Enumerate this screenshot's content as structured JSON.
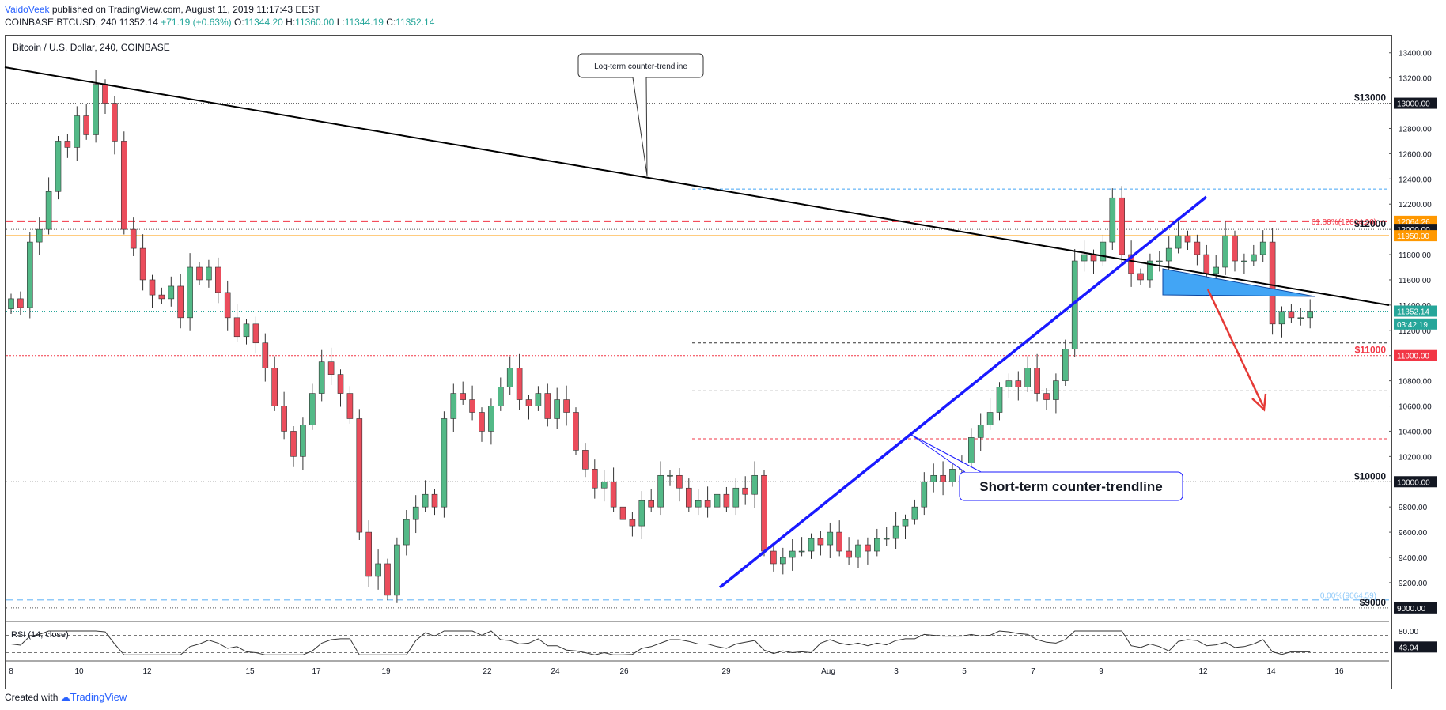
{
  "header": {
    "username": "VaidoVeek",
    "published_text": " published on TradingView.com, August 11, 2019 11:17:43 EEST",
    "symbol": "COINBASE:BTCUSD, 240",
    "last_price": "11352.14",
    "change": "+71.19 (+0.63%)",
    "open_label": "O:",
    "open": "11344.20",
    "high_label": "H:",
    "high": "11360.00",
    "low_label": "L:",
    "low": "11344.19",
    "close_label": "C:",
    "close": "11352.14"
  },
  "footer": {
    "created_with": "Created with",
    "brand": "TradingView"
  },
  "colors": {
    "up": "#26a69a",
    "candle_up": "#53b987",
    "candle_down": "#eb4d5c",
    "trend_blue": "#1a1aff",
    "trend_black": "#000000",
    "fib_orange": "#ff9800",
    "support_red": "#f23645",
    "projection_blue": "#42a5f5"
  },
  "chart_data": {
    "type": "candlestick",
    "title": "Bitcoin / U.S. Dollar, 240, COINBASE",
    "ylim": [
      8930,
      13530
    ],
    "y_ticks": [
      9200,
      9400,
      9600,
      9800,
      10000,
      10200,
      10400,
      10600,
      10800,
      11000,
      11200,
      11400,
      11600,
      11800,
      12000,
      12200,
      12400,
      12600,
      12800,
      13000,
      13200,
      13400
    ],
    "x_ticks": [
      "8",
      "10",
      "12",
      "15",
      "17",
      "19",
      "22",
      "24",
      "26",
      "29",
      "Aug",
      "3",
      "5",
      "7",
      "9",
      "12",
      "14",
      "16"
    ],
    "price_tags": [
      {
        "label": "12064.26",
        "value": 12064.26,
        "color": "#ff9800"
      },
      {
        "label": "12000.00",
        "value": 12000,
        "color": "#131722"
      },
      {
        "label": "11950.00",
        "value": 11950,
        "color": "#ff9800"
      },
      {
        "label": "11352.14",
        "value": 11352.14,
        "color": "#26a69a"
      },
      {
        "label": "03:42:19",
        "value": 11250,
        "color": "#26a69a"
      },
      {
        "label": "11000.00",
        "value": 11000,
        "color": "#f23645"
      },
      {
        "label": "13000.00",
        "value": 13000,
        "color": "#131722"
      },
      {
        "label": "10000.00",
        "value": 10000,
        "color": "#131722"
      },
      {
        "label": "9000.00",
        "value": 9000,
        "color": "#131722"
      }
    ],
    "level_labels": [
      {
        "text": "$13000",
        "value": 13000,
        "color": "#131722"
      },
      {
        "text": "$12000",
        "value": 12000,
        "color": "#131722"
      },
      {
        "text": "$11000",
        "value": 11000,
        "color": "#f23645"
      },
      {
        "text": "$10000",
        "value": 10000,
        "color": "#131722"
      },
      {
        "text": "$9000",
        "value": 9000,
        "color": "#131722"
      }
    ],
    "fib_labels": [
      {
        "text": "61.80%(12064.26)",
        "value": 12064.26
      },
      {
        "text": "0.00%(9064.59)",
        "value": 9064.59
      }
    ],
    "annotations": {
      "long_trend": "Log-term counter-trendline",
      "short_trend": "Short-term counter-trendline"
    },
    "closes": [
      11450,
      11380,
      11900,
      12000,
      12300,
      12700,
      12650,
      12900,
      12750,
      13150,
      13000,
      12700,
      12000,
      11850,
      11600,
      11480,
      11450,
      11550,
      11300,
      11700,
      11600,
      11700,
      11500,
      11300,
      11150,
      11250,
      11100,
      10900,
      10600,
      10400,
      10200,
      10450,
      10700,
      10950,
      10850,
      10700,
      10500,
      9600,
      9250,
      9350,
      9100,
      9500,
      9700,
      9800,
      9900,
      9800,
      10500,
      10700,
      10650,
      10550,
      10400,
      10600,
      10750,
      10900,
      10650,
      10600,
      10700,
      10500,
      10650,
      10550,
      10250,
      10100,
      9950,
      10000,
      9800,
      9700,
      9650,
      9850,
      9800,
      10050,
      10050,
      9950,
      9800,
      9850,
      9800,
      9900,
      9800,
      9950,
      9900,
      10050,
      9450,
      9350,
      9400,
      9450,
      9450,
      9550,
      9500,
      9600,
      9450,
      9400,
      9500,
      9450,
      9550,
      9550,
      9650,
      9700,
      9800,
      10000,
      10050,
      10000,
      10100,
      10150,
      10350,
      10450,
      10550,
      10750,
      10800,
      10750,
      10900,
      10700,
      10650,
      10800,
      11050,
      11750,
      11800,
      11750,
      11900,
      12250,
      11800,
      11650,
      11600,
      11750,
      11750,
      11850,
      11950,
      11900,
      11800,
      11650,
      11700,
      11950,
      11750,
      11750,
      11800,
      11900,
      11250,
      11350,
      11300,
      11300,
      11352.14
    ],
    "rsi": {
      "label": "RSI (14, close)",
      "value": "43.04",
      "ylim": [
        0,
        100
      ],
      "levels": [
        70,
        30
      ],
      "ticks": [
        {
          "label": "80.00",
          "value": 80
        }
      ]
    }
  }
}
